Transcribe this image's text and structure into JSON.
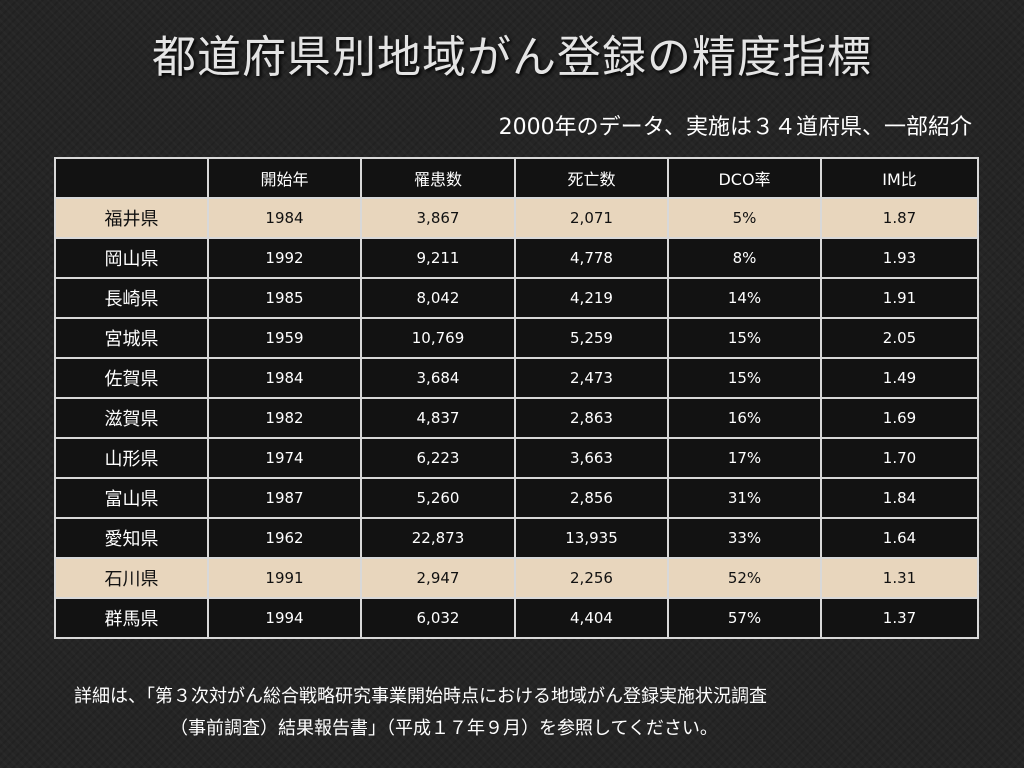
{
  "title": "都道府県別地域がん登録の精度指標",
  "subtitle": "2000年のデータ、実施は３４道府県、一部紹介",
  "table": {
    "headers": [
      "",
      "開始年",
      "罹患数",
      "死亡数",
      "DCO率",
      "IM比"
    ],
    "rows": [
      {
        "pref": "福井県",
        "start": "1984",
        "incidence": "3,867",
        "deaths": "2,071",
        "dco": "5%",
        "im": "1.87",
        "highlight": true
      },
      {
        "pref": "岡山県",
        "start": "1992",
        "incidence": "9,211",
        "deaths": "4,778",
        "dco": "8%",
        "im": "1.93",
        "highlight": false
      },
      {
        "pref": "長崎県",
        "start": "1985",
        "incidence": "8,042",
        "deaths": "4,219",
        "dco": "14%",
        "im": "1.91",
        "highlight": false
      },
      {
        "pref": "宮城県",
        "start": "1959",
        "incidence": "10,769",
        "deaths": "5,259",
        "dco": "15%",
        "im": "2.05",
        "highlight": false
      },
      {
        "pref": "佐賀県",
        "start": "1984",
        "incidence": "3,684",
        "deaths": "2,473",
        "dco": "15%",
        "im": "1.49",
        "highlight": false
      },
      {
        "pref": "滋賀県",
        "start": "1982",
        "incidence": "4,837",
        "deaths": "2,863",
        "dco": "16%",
        "im": "1.69",
        "highlight": false
      },
      {
        "pref": "山形県",
        "start": "1974",
        "incidence": "6,223",
        "deaths": "3,663",
        "dco": "17%",
        "im": "1.70",
        "highlight": false
      },
      {
        "pref": "富山県",
        "start": "1987",
        "incidence": "5,260",
        "deaths": "2,856",
        "dco": "31%",
        "im": "1.84",
        "highlight": false
      },
      {
        "pref": "愛知県",
        "start": "1962",
        "incidence": "22,873",
        "deaths": "13,935",
        "dco": "33%",
        "im": "1.64",
        "highlight": false
      },
      {
        "pref": "石川県",
        "start": "1991",
        "incidence": "2,947",
        "deaths": "2,256",
        "dco": "52%",
        "im": "1.31",
        "highlight": true
      },
      {
        "pref": "群馬県",
        "start": "1994",
        "incidence": "6,032",
        "deaths": "4,404",
        "dco": "57%",
        "im": "1.37",
        "highlight": false
      }
    ]
  },
  "footnote": {
    "line1": "詳細は、「第３次対がん総合戦略研究事業開始時点における地域がん登録実施状況調査",
    "line2": "（事前調査）結果報告書」（平成１７年９月）を参照してください。"
  },
  "colors": {
    "background": "#252525",
    "table_cell": "#121212",
    "highlight_row": "#e8d6bd",
    "border": "#d8d8d8"
  }
}
